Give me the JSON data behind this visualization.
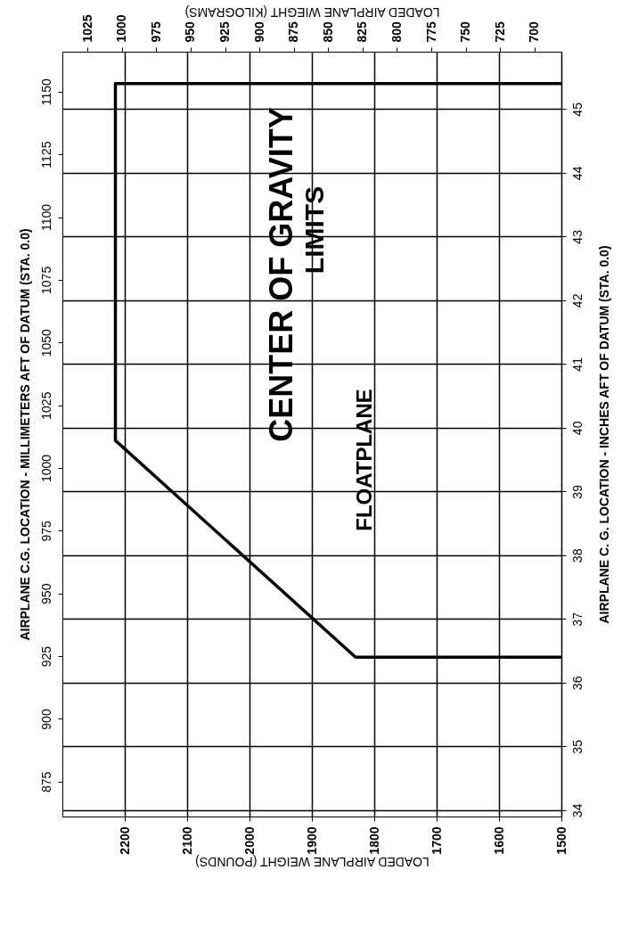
{
  "chart_data": {
    "type": "line",
    "xlabel": "LOADED AIRPLANE WEIGHT (POUNDS)",
    "ylabel": "AIRPLANE C. G. LOCATION - INCHES AFT OF DATUM (STA. 0.0)",
    "x2label": "LOADED AIRPLANE WIEGHT (KILOGRAMS)",
    "y2label": "AIRPLANE C.G. LOCATION - MILLIMETERS AFT OF DATUM (STA. 0.0)",
    "series": [
      {
        "color": "#000000",
        "x": [
          1500,
          2215,
          2215,
          1830,
          1500
        ],
        "values": [
          45.4,
          45.4,
          39.8,
          36.4,
          36.4
        ]
      }
    ],
    "xlim": [
      2300,
      1500
    ],
    "xticks": [
      1500,
      1600,
      1700,
      1800,
      1900,
      2000,
      2100,
      2200
    ],
    "ylim": [
      33.9,
      45.9
    ],
    "yticks": [
      34,
      35,
      36,
      37,
      38,
      39,
      40,
      41,
      42,
      43,
      44,
      45
    ],
    "x2lim": [
      1043.3,
      680.4
    ],
    "x2ticks": [
      700,
      725,
      750,
      775,
      800,
      825,
      850,
      875,
      900,
      925,
      950,
      975,
      1000,
      1025
    ],
    "y2lim": [
      861.1,
      1165.9
    ],
    "y2ticks": [
      875,
      900,
      925,
      950,
      975,
      1000,
      1025,
      1050,
      1075,
      1100,
      1125,
      1150
    ],
    "grid": true,
    "annotations": [
      "CENTER OF GRAVITY",
      "LIMITS",
      "FLOATPLANE"
    ]
  }
}
